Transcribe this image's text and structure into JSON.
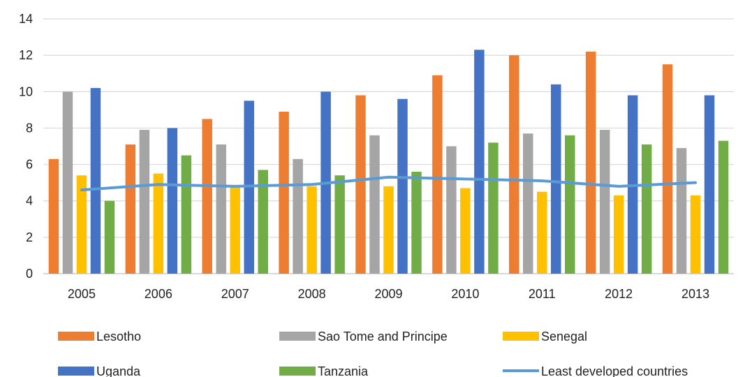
{
  "chart_data": {
    "type": "bar",
    "title": "",
    "xlabel": "",
    "ylabel": "",
    "categories": [
      "2005",
      "2006",
      "2007",
      "2008",
      "2009",
      "2010",
      "2011",
      "2012",
      "2013"
    ],
    "ylim": [
      0,
      14
    ],
    "yticks": [
      "0",
      "2",
      "4",
      "6",
      "8",
      "10",
      "12",
      "14"
    ],
    "grid": true,
    "legend_position": "bottom",
    "series": [
      {
        "name": "Lesotho",
        "type": "bar",
        "color": "#ED7D31",
        "values": [
          6.3,
          7.1,
          8.5,
          8.9,
          9.8,
          10.9,
          12.0,
          12.2,
          11.5
        ]
      },
      {
        "name": "Sao Tome and Principe",
        "type": "bar",
        "color": "#A5A5A5",
        "values": [
          10.0,
          7.9,
          7.1,
          6.3,
          7.6,
          7.0,
          7.7,
          7.9,
          6.9
        ]
      },
      {
        "name": "Senegal",
        "type": "bar",
        "color": "#FFC000",
        "values": [
          5.4,
          5.5,
          4.8,
          4.8,
          4.8,
          4.7,
          4.5,
          4.3,
          4.3
        ]
      },
      {
        "name": "Uganda",
        "type": "bar",
        "color": "#4472C4",
        "values": [
          10.2,
          8.0,
          9.5,
          10.0,
          9.6,
          12.3,
          10.4,
          9.8,
          9.8
        ]
      },
      {
        "name": "Tanzania",
        "type": "bar",
        "color": "#70AD47",
        "values": [
          4.0,
          6.5,
          5.7,
          5.4,
          5.6,
          7.2,
          7.6,
          7.1,
          7.3
        ]
      },
      {
        "name": "Least developed countries",
        "type": "line",
        "color": "#5B9BD5",
        "values": [
          4.6,
          4.9,
          4.8,
          4.9,
          5.3,
          5.2,
          5.1,
          4.8,
          5.0
        ]
      }
    ]
  }
}
